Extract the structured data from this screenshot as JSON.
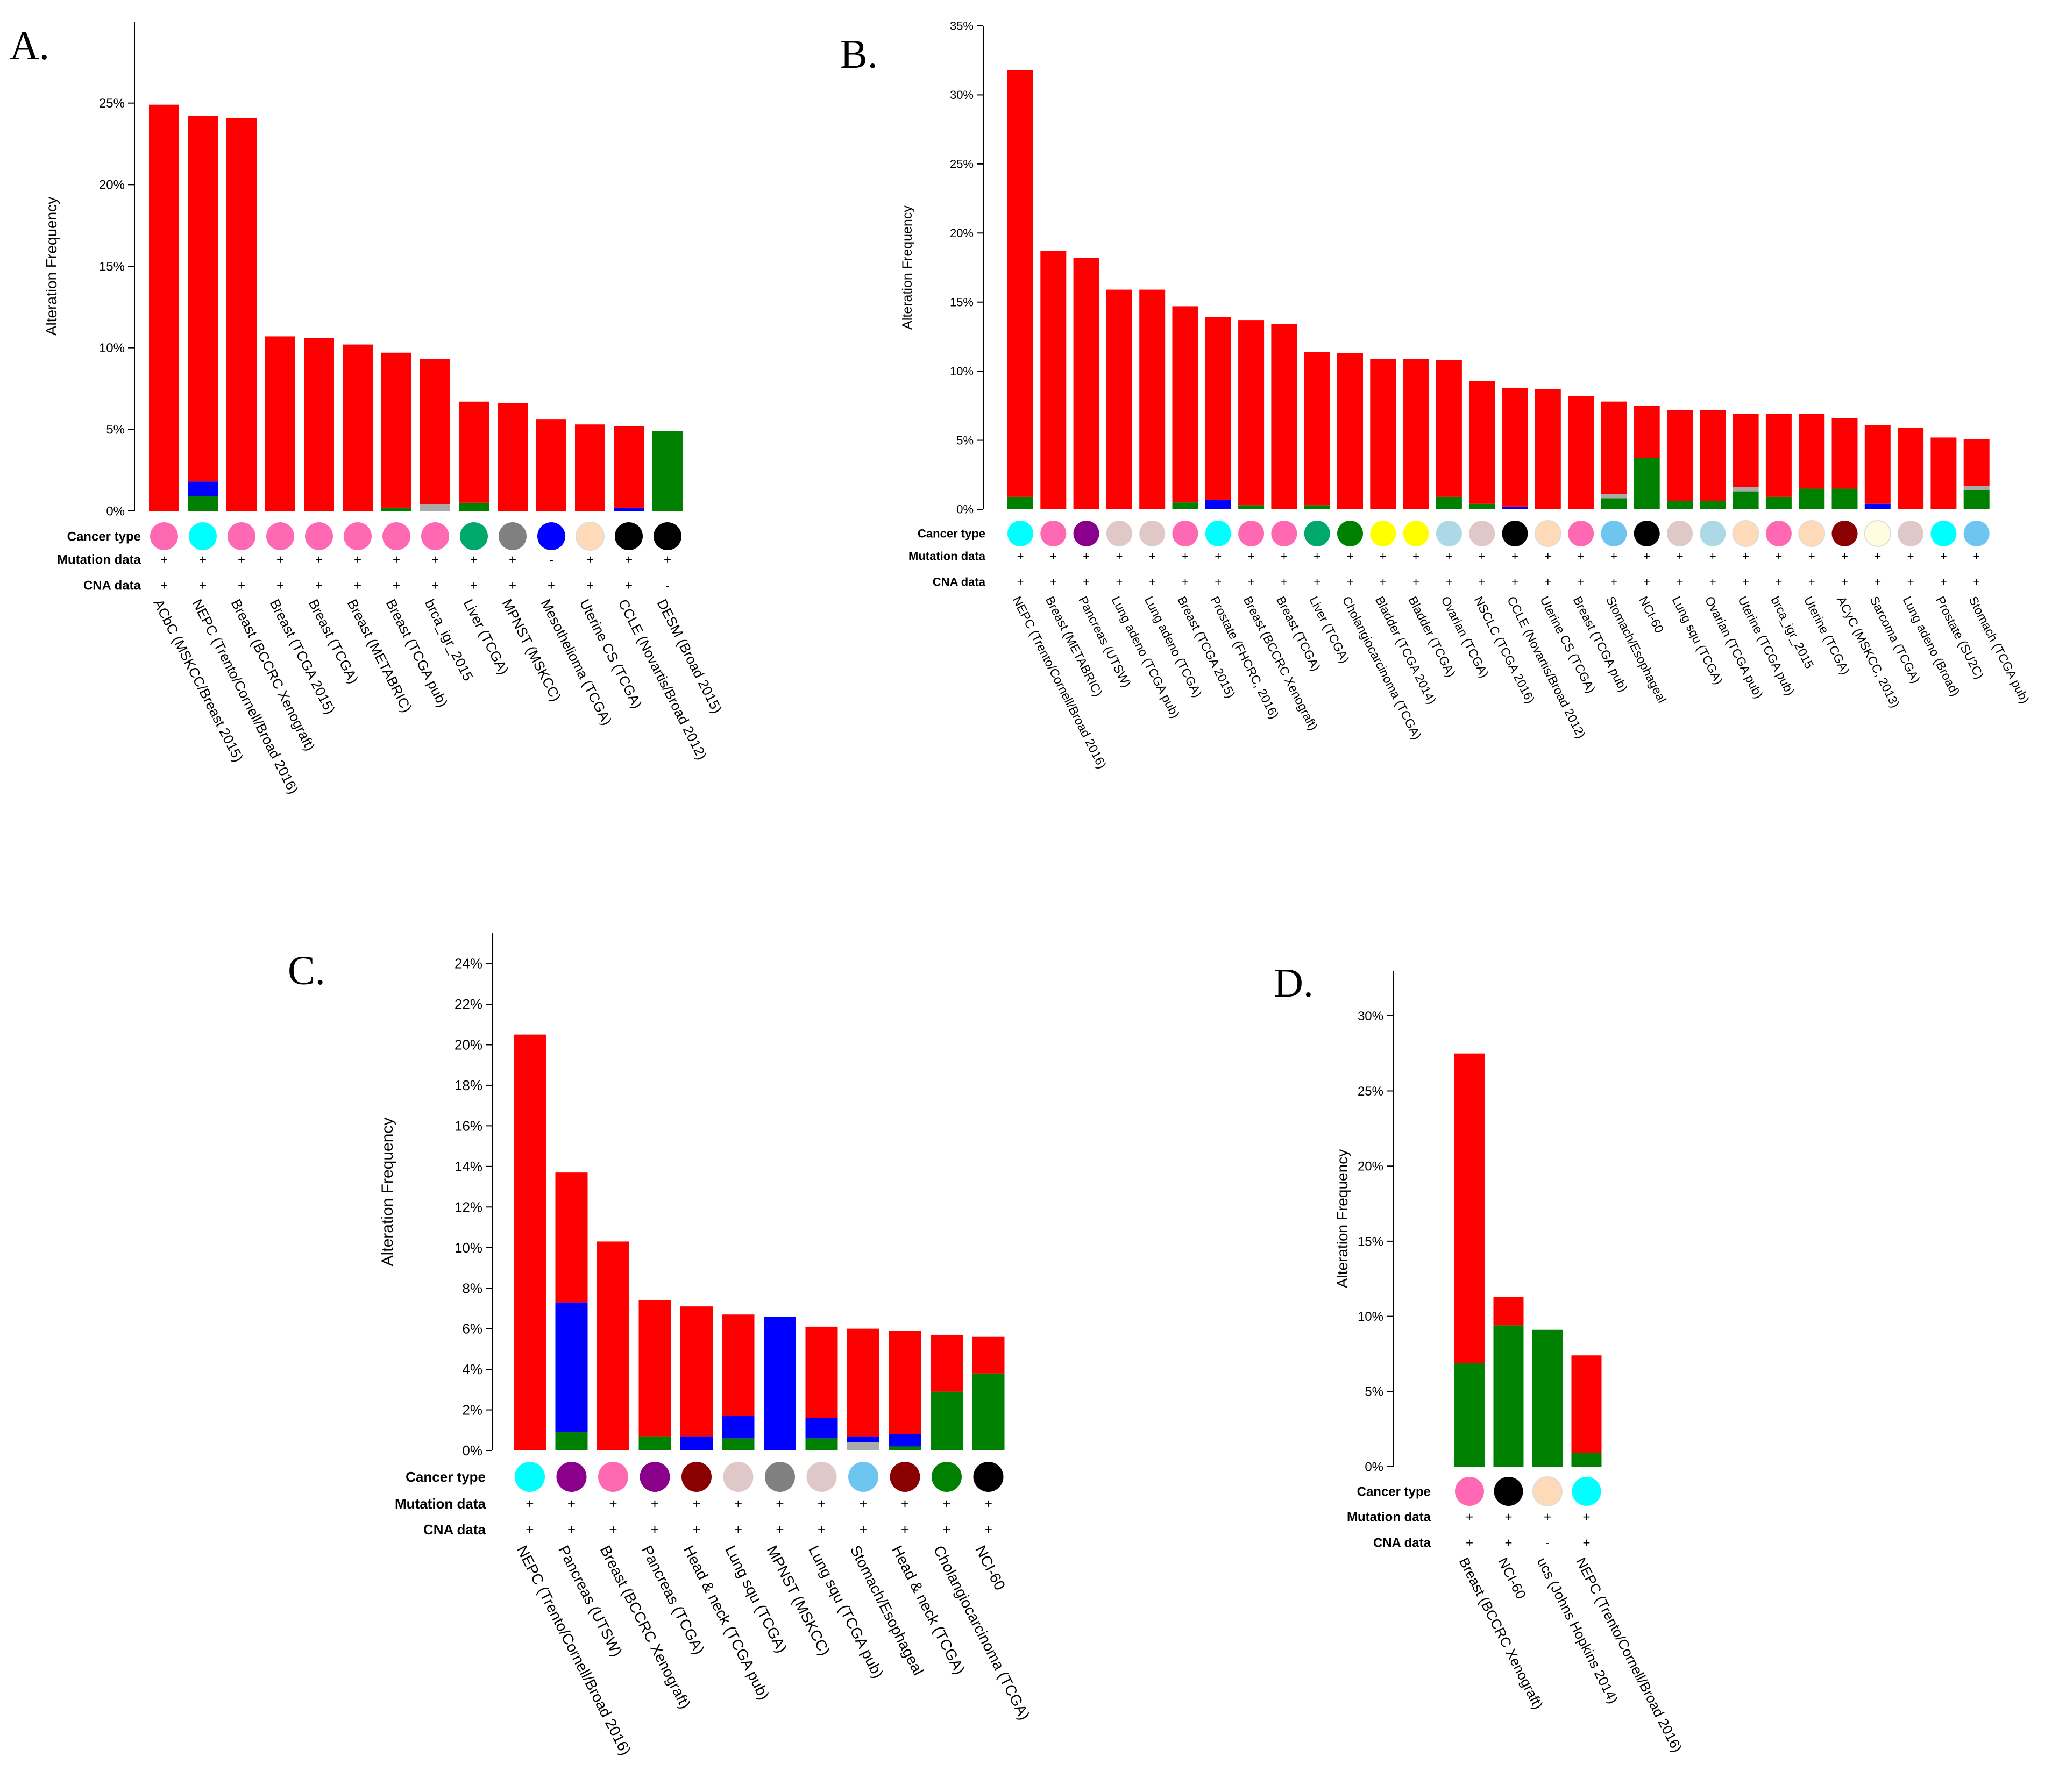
{
  "panels": [
    {
      "letter": "A."
    },
    {
      "letter": "B."
    },
    {
      "letter": "C."
    },
    {
      "letter": "D."
    }
  ],
  "colors": {
    "amplification": "#ff0000",
    "mutation": "#008000",
    "deletion": "#0000ff",
    "multiple": "#aaaaaa"
  },
  "chart_data": [
    {
      "type": "bar",
      "ylabel": "Alteration Frequency",
      "ylim": [
        0,
        30
      ],
      "yticks": [
        0,
        5,
        10,
        15,
        20,
        25
      ],
      "row_labels": [
        "Cancer type",
        "Mutation data",
        "CNA data"
      ],
      "categories": [
        "ACbC (MSKCC/Breast 2015)",
        "NEPC (Trento/Cornell/Broad 2016)",
        "Breast (BCCRC Xenograft)",
        "Breast (TCGA 2015)",
        "Breast (TCGA)",
        "Breast (METABRIC)",
        "Breast (TCGA pub)",
        "brca_igr_2015",
        "Liver (TCGA)",
        "MPNST (MSKCC)",
        "Mesothelioma (TCGA)",
        "Uterine CS (TCGA)",
        "CCLE (Novartis/Broad 2012)",
        "DESM (Broad 2015)"
      ],
      "totals": [
        24.9,
        24.2,
        24.1,
        10.7,
        10.6,
        10.2,
        9.7,
        9.3,
        6.7,
        6.6,
        5.6,
        5.3,
        5.2,
        4.9
      ],
      "series": [
        {
          "name": "mutation",
          "values": [
            0,
            0.9,
            0,
            0,
            0,
            0,
            0.2,
            0,
            0.5,
            0,
            0,
            0,
            0,
            4.9
          ]
        },
        {
          "name": "deletion",
          "values": [
            0,
            0.9,
            0,
            0,
            0,
            0,
            0,
            0,
            0,
            0,
            0,
            0,
            0.2,
            0
          ]
        },
        {
          "name": "multiple",
          "values": [
            0,
            0,
            0,
            0,
            0,
            0,
            0,
            0.4,
            0,
            0,
            0,
            0,
            0,
            0
          ]
        }
      ],
      "cancer_type_colors": [
        "#ff69b4",
        "#00ffff",
        "#ff69b4",
        "#ff69b4",
        "#ff69b4",
        "#ff69b4",
        "#ff69b4",
        "#ff69b4",
        "#00a86b",
        "#808080",
        "#0000ff",
        "#ffdab9",
        "#000000",
        "#000000"
      ],
      "mutation_data": [
        "+",
        "+",
        "+",
        "+",
        "+",
        "+",
        "+",
        "+",
        "+",
        "+",
        "-",
        "+",
        "+",
        "+"
      ],
      "cna_data": [
        "+",
        "+",
        "+",
        "+",
        "+",
        "+",
        "+",
        "+",
        "+",
        "+",
        "+",
        "+",
        "+",
        "-"
      ]
    },
    {
      "type": "bar",
      "ylabel": "Alteration Frequency",
      "ylim": [
        0,
        35
      ],
      "yticks": [
        0,
        5,
        10,
        15,
        20,
        25,
        30,
        35
      ],
      "row_labels": [
        "Cancer type",
        "Mutation data",
        "CNA data"
      ],
      "categories": [
        "NEPC (Trento/Cornell/Broad 2016)",
        "Breast (METABRIC)",
        "Pancreas (UTSW)",
        "Lung adeno (TCGA pub)",
        "Lung adeno (TCGA)",
        "Breast (TCGA 2015)",
        "Prostate (FHCRC, 2016)",
        "Breast (BCCRC Xenograft)",
        "Breast (TCGA)",
        "Liver (TCGA)",
        "Cholangiocarcinoma (TCGA)",
        "Bladder (TCGA 2014)",
        "Bladder (TCGA)",
        "Ovarian (TCGA)",
        "NSCLC (TCGA 2016)",
        "CCLE (Novartis/Broad 2012)",
        "Uterine CS (TCGA)",
        "Breast (TCGA pub)",
        "Stomach/Esophageal",
        "NCI-60",
        "Lung squ (TCGA)",
        "Ovarian (TCGA pub)",
        "Uterine (TCGA pub)",
        "brca_igr_2015",
        "Uterine (TCGA)",
        "ACyC (MSKCC, 2013)",
        "Sarcoma (TCGA)",
        "Lung adeno (Broad)",
        "Prostate (SU2C)",
        "Stomach (TCGA pub)"
      ],
      "totals": [
        31.8,
        18.7,
        18.2,
        15.9,
        15.9,
        14.7,
        13.9,
        13.7,
        13.4,
        11.4,
        11.3,
        10.9,
        10.9,
        10.8,
        9.3,
        8.8,
        8.7,
        8.2,
        7.8,
        7.5,
        7.2,
        7.2,
        6.9,
        6.9,
        6.9,
        6.6,
        6.1,
        5.9,
        5.2,
        5.1
      ],
      "series": [
        {
          "name": "mutation",
          "values": [
            0.9,
            0,
            0,
            0,
            0,
            0.5,
            0,
            0.3,
            0,
            0.3,
            0,
            0,
            0,
            0.9,
            0.4,
            0,
            0,
            0,
            0.8,
            3.7,
            0.6,
            0.6,
            1.3,
            0.9,
            1.5,
            1.5,
            0,
            0,
            0,
            1.4
          ]
        },
        {
          "name": "deletion",
          "values": [
            0,
            0,
            0,
            0,
            0,
            0,
            0.7,
            0,
            0,
            0,
            0,
            0,
            0,
            0,
            0,
            0.2,
            0,
            0,
            0,
            0,
            0,
            0,
            0,
            0,
            0,
            0,
            0.4,
            0,
            0,
            0
          ]
        },
        {
          "name": "multiple",
          "values": [
            0,
            0,
            0,
            0,
            0,
            0,
            0,
            0,
            0,
            0,
            0,
            0,
            0,
            0,
            0,
            0,
            0,
            0,
            0.3,
            0,
            0,
            0,
            0.3,
            0,
            0,
            0,
            0,
            0,
            0,
            0.3
          ]
        }
      ],
      "cancer_type_colors": [
        "#00ffff",
        "#ff69b4",
        "#8b008b",
        "#e0c8c8",
        "#e0c8c8",
        "#ff69b4",
        "#00ffff",
        "#ff69b4",
        "#ff69b4",
        "#00a86b",
        "#008000",
        "#ffff00",
        "#ffff00",
        "#add8e6",
        "#e0c8c8",
        "#000000",
        "#ffdab9",
        "#ff69b4",
        "#6ec6f0",
        "#000000",
        "#e0c8c8",
        "#add8e6",
        "#ffdab9",
        "#ff69b4",
        "#ffdab9",
        "#8b0000",
        "#fffde0",
        "#e0c8c8",
        "#00ffff",
        "#6ec6f0"
      ],
      "mutation_data": [
        "+",
        "+",
        "+",
        "+",
        "+",
        "+",
        "+",
        "+",
        "+",
        "+",
        "+",
        "+",
        "+",
        "+",
        "+",
        "+",
        "+",
        "+",
        "+",
        "+",
        "+",
        "+",
        "+",
        "+",
        "+",
        "+",
        "+",
        "+",
        "+",
        "+"
      ],
      "cna_data": [
        "+",
        "+",
        "+",
        "+",
        "+",
        "+",
        "+",
        "+",
        "+",
        "+",
        "+",
        "+",
        "+",
        "+",
        "+",
        "+",
        "+",
        "+",
        "+",
        "+",
        "+",
        "+",
        "+",
        "+",
        "+",
        "+",
        "+",
        "+",
        "+",
        "+"
      ]
    },
    {
      "type": "bar",
      "ylabel": "Alteration Frequency",
      "ylim": [
        0,
        25.5
      ],
      "yticks": [
        0,
        2,
        4,
        6,
        8,
        10,
        12,
        14,
        16,
        18,
        20,
        22,
        24
      ],
      "row_labels": [
        "Cancer type",
        "Mutation data",
        "CNA data"
      ],
      "categories": [
        "NEPC (Trento/Cornell/Broad 2016)",
        "Pancreas (UTSW)",
        "Breast (BCCRC Xenograft)",
        "Pancreas (TCGA)",
        "Head & neck (TCGA pub)",
        "Lung squ (TCGA)",
        "MPNST (MSKCC)",
        "Lung squ (TCGA pub)",
        "Stomach/Esophageal",
        "Head & neck (TCGA)",
        "Cholangiocarcinoma (TCGA)",
        "NCI-60"
      ],
      "totals": [
        20.5,
        13.7,
        10.3,
        7.4,
        7.1,
        6.7,
        6.6,
        6.1,
        6.0,
        5.9,
        5.7,
        5.6
      ],
      "series": [
        {
          "name": "mutation",
          "values": [
            0,
            0.9,
            0,
            0.7,
            0,
            0.6,
            0,
            0.6,
            0,
            0.2,
            2.9,
            3.8
          ]
        },
        {
          "name": "deletion",
          "values": [
            0,
            6.4,
            0,
            0,
            0.7,
            1.1,
            6.6,
            1.0,
            0.3,
            0.6,
            0,
            0
          ]
        },
        {
          "name": "multiple",
          "values": [
            0,
            0,
            0,
            0,
            0,
            0,
            0,
            0,
            0.4,
            0,
            0,
            0
          ]
        }
      ],
      "cancer_type_colors": [
        "#00ffff",
        "#8b008b",
        "#ff69b4",
        "#8b008b",
        "#8b0000",
        "#e0c8c8",
        "#808080",
        "#e0c8c8",
        "#6ec6f0",
        "#8b0000",
        "#008000",
        "#000000"
      ],
      "mutation_data": [
        "+",
        "+",
        "+",
        "+",
        "+",
        "+",
        "+",
        "+",
        "+",
        "+",
        "+",
        "+"
      ],
      "cna_data": [
        "+",
        "+",
        "+",
        "+",
        "+",
        "+",
        "+",
        "+",
        "+",
        "+",
        "+",
        "+"
      ]
    },
    {
      "type": "bar",
      "ylabel": "Alteration Frequency",
      "ylim": [
        0,
        33
      ],
      "yticks": [
        0,
        5,
        10,
        15,
        20,
        25,
        30
      ],
      "row_labels": [
        "Cancer type",
        "Mutation data",
        "CNA data"
      ],
      "categories": [
        "Breast (BCCRC Xenograft)",
        "NCI-60",
        "ucs (Johns Hopkins 2014)",
        "NEPC (Trento/Cornell/Broad 2016)"
      ],
      "totals": [
        27.5,
        11.3,
        9.1,
        7.4
      ],
      "series": [
        {
          "name": "mutation",
          "values": [
            6.9,
            9.4,
            9.1,
            0.9
          ]
        },
        {
          "name": "deletion",
          "values": [
            0,
            0,
            0,
            0
          ]
        },
        {
          "name": "multiple",
          "values": [
            0,
            0,
            0,
            0
          ]
        }
      ],
      "cancer_type_colors": [
        "#ff69b4",
        "#000000",
        "#ffdab9",
        "#00ffff"
      ],
      "mutation_data": [
        "+",
        "+",
        "+",
        "+"
      ],
      "cna_data": [
        "+",
        "+",
        "-",
        "+"
      ]
    }
  ]
}
